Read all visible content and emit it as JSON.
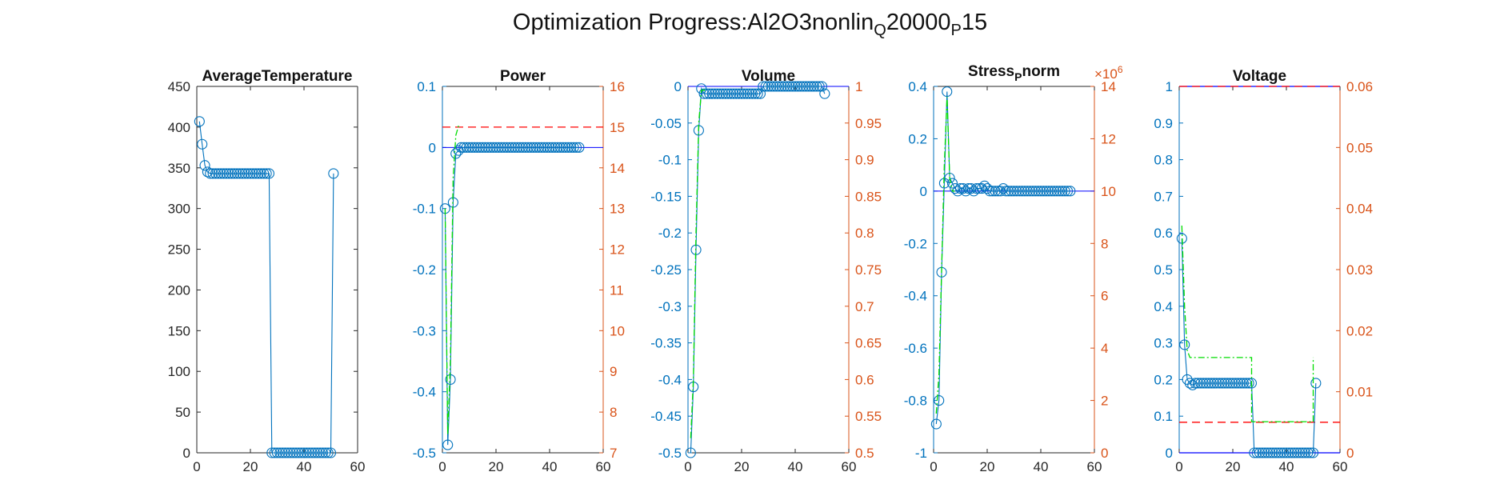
{
  "title": {
    "main": "Optimization Progress:Al2O3nonlin",
    "sub1": "Q",
    "mid": "20000",
    "sub2": "P",
    "end": "15"
  },
  "colors": {
    "blue": "#0072BD",
    "orange": "#D95319",
    "green": "#00DD00",
    "red": "#FF0000",
    "navy": "#0000FF",
    "axis": "#262626"
  },
  "chart_data": [
    {
      "type": "line",
      "title": "AverageTemperature",
      "xlim": [
        0,
        60
      ],
      "x_ticks": [
        "0",
        "20",
        "40",
        "60"
      ],
      "ylim": [
        0,
        450
      ],
      "y_ticks": [
        "0",
        "50",
        "100",
        "150",
        "200",
        "250",
        "300",
        "350",
        "400",
        "450"
      ],
      "series": [
        {
          "marker": "circle",
          "values": [
            407,
            379,
            353,
            345,
            343,
            343,
            343,
            343,
            343,
            343,
            343,
            343,
            343,
            343,
            343,
            343,
            343,
            343,
            343,
            343,
            343,
            343,
            343,
            343,
            343,
            343,
            343,
            0,
            0,
            0,
            0,
            0,
            0,
            0,
            0,
            0,
            0,
            0,
            0,
            0,
            0,
            0,
            0,
            0,
            0,
            0,
            0,
            0,
            0,
            0,
            343
          ]
        }
      ]
    },
    {
      "type": "line",
      "title": "Power",
      "xlim": [
        0,
        60
      ],
      "x_ticks": [
        "0",
        "20",
        "40",
        "60"
      ],
      "ylim": [
        -0.5,
        0.1
      ],
      "y_ticks": [
        "-0.5",
        "-0.4",
        "-0.3",
        "-0.2",
        "-0.1",
        "0",
        "0.1"
      ],
      "ylim_right": [
        7,
        16
      ],
      "y_ticks_right": [
        "7",
        "8",
        "9",
        "10",
        "11",
        "12",
        "13",
        "14",
        "15",
        "16"
      ],
      "series": [
        {
          "marker": "circle",
          "values": [
            -0.1,
            -0.487,
            -0.38,
            -0.09,
            -0.01,
            -0.005,
            0,
            0,
            0,
            0,
            0,
            0,
            0,
            0,
            0,
            0,
            0,
            0,
            0,
            0,
            0,
            0,
            0,
            0,
            0,
            0,
            0,
            0,
            0,
            0,
            0,
            0,
            0,
            0,
            0,
            0,
            0,
            0,
            0,
            0,
            0,
            0,
            0,
            0,
            0,
            0,
            0,
            0,
            0,
            0,
            0
          ]
        },
        {
          "style": "green-dashdot",
          "x": [
            1,
            2,
            3,
            4,
            5,
            6,
            7
          ],
          "values": [
            -0.1,
            -0.47,
            -0.35,
            -0.05,
            0.02,
            0.035,
            0.035
          ]
        }
      ],
      "ref_left": 0,
      "ref_right": 15
    },
    {
      "type": "line",
      "title": "Volume",
      "xlim": [
        0,
        60
      ],
      "x_ticks": [
        "0",
        "20",
        "40",
        "60"
      ],
      "ylim": [
        -0.5,
        0
      ],
      "y_ticks": [
        "-0.5",
        "-0.45",
        "-0.4",
        "-0.35",
        "-0.3",
        "-0.25",
        "-0.2",
        "-0.15",
        "-0.1",
        "-0.05",
        "0"
      ],
      "ylim_right": [
        0.5,
        1
      ],
      "y_ticks_right": [
        "0.5",
        "0.55",
        "0.6",
        "0.65",
        "0.7",
        "0.75",
        "0.8",
        "0.85",
        "0.9",
        "0.95",
        "1"
      ],
      "series": [
        {
          "marker": "circle",
          "values": [
            -0.5,
            -0.41,
            -0.223,
            -0.06,
            -0.003,
            -0.01,
            -0.01,
            -0.01,
            -0.01,
            -0.01,
            -0.01,
            -0.01,
            -0.01,
            -0.01,
            -0.01,
            -0.01,
            -0.01,
            -0.01,
            -0.01,
            -0.01,
            -0.01,
            -0.01,
            -0.01,
            -0.01,
            -0.01,
            -0.01,
            -0.01,
            0,
            0,
            0,
            0,
            0,
            0,
            0,
            0,
            0,
            0,
            0,
            0,
            0,
            0,
            0,
            0,
            0,
            0,
            0,
            0,
            0,
            0,
            0,
            -0.01
          ]
        },
        {
          "style": "green-dashdot",
          "x": [
            1,
            2,
            3,
            4,
            5,
            6,
            7
          ],
          "values": [
            -0.48,
            -0.4,
            -0.2,
            -0.05,
            -0.005,
            -0.005,
            -0.008
          ]
        }
      ],
      "ref_left": 0
    },
    {
      "type": "line",
      "title_main": "Stress",
      "title_sub": "P",
      "title_end": "norm",
      "xlim": [
        0,
        60
      ],
      "x_ticks": [
        "0",
        "20",
        "40",
        "60"
      ],
      "ylim": [
        -1,
        0.4
      ],
      "y_ticks": [
        "-1",
        "-0.8",
        "-0.6",
        "-0.4",
        "-0.2",
        "0",
        "0.2",
        "0.4"
      ],
      "ylim_right": [
        0,
        14
      ],
      "y_ticks_right": [
        "0",
        "2",
        "4",
        "6",
        "8",
        "10",
        "12",
        "14"
      ],
      "right_exponent_base": "×10",
      "right_exponent": "6",
      "series": [
        {
          "marker": "circle",
          "values": [
            -0.89,
            -0.8,
            -0.31,
            0.03,
            0.38,
            0.05,
            0.03,
            0.01,
            0,
            0.01,
            0.01,
            0,
            0.01,
            0.01,
            0,
            0.01,
            0.01,
            0.01,
            0.02,
            0.01,
            0,
            0,
            0,
            0,
            0,
            0.01,
            0,
            0,
            0,
            0,
            0,
            0,
            0,
            0,
            0,
            0,
            0,
            0,
            0,
            0,
            0,
            0,
            0,
            0,
            0,
            0,
            0,
            0,
            0,
            0,
            0
          ]
        },
        {
          "style": "green-dashdot",
          "x": [
            1,
            2,
            3,
            4,
            5,
            6,
            7,
            8
          ],
          "values": [
            -0.85,
            -0.7,
            -0.3,
            0.1,
            0.36,
            0.05,
            0,
            0
          ]
        }
      ],
      "ref_left": 0
    },
    {
      "type": "line",
      "title": "Voltage",
      "xlim": [
        0,
        60
      ],
      "x_ticks": [
        "0",
        "20",
        "40",
        "60"
      ],
      "ylim": [
        0,
        1
      ],
      "y_ticks": [
        "0",
        "0.1",
        "0.2",
        "0.3",
        "0.4",
        "0.5",
        "0.6",
        "0.7",
        "0.8",
        "0.9",
        "1"
      ],
      "ylim_right": [
        0,
        0.06
      ],
      "y_ticks_right": [
        "0",
        "0.01",
        "0.02",
        "0.03",
        "0.04",
        "0.05",
        "0.06"
      ],
      "series": [
        {
          "marker": "circle",
          "values": [
            0.585,
            0.295,
            0.2,
            0.19,
            0.185,
            0.19,
            0.19,
            0.19,
            0.19,
            0.19,
            0.19,
            0.19,
            0.19,
            0.19,
            0.19,
            0.19,
            0.19,
            0.19,
            0.19,
            0.19,
            0.19,
            0.19,
            0.19,
            0.19,
            0.19,
            0.19,
            0.19,
            0,
            0,
            0,
            0,
            0,
            0,
            0,
            0,
            0,
            0,
            0,
            0,
            0,
            0,
            0,
            0,
            0,
            0,
            0,
            0,
            0,
            0,
            0,
            0.19
          ]
        },
        {
          "style": "green-dashdot",
          "x": [
            1,
            2,
            3,
            4,
            27,
            27,
            50,
            50
          ],
          "values": [
            0.62,
            0.4,
            0.28,
            0.26,
            0.26,
            0.085,
            0.085,
            0.26
          ]
        }
      ],
      "ref_left_top": 1,
      "ref_left_bottom": 0,
      "ref_right": 0.005
    }
  ]
}
